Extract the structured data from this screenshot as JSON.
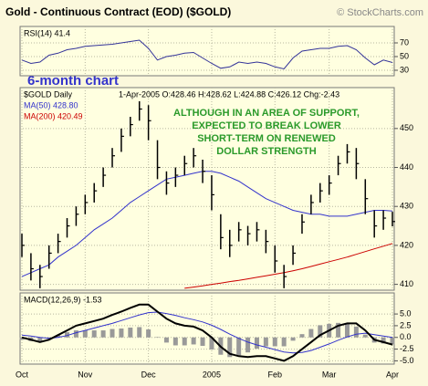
{
  "header": {
    "title": "Gold - Continuous Contract (EOD) ($GOLD)",
    "credit": "© StockCharts.com"
  },
  "annotation": "6-month chart",
  "chart_data": [
    {
      "type": "line",
      "title": "RSI(14) 41.4",
      "color": "#333399",
      "values": [
        45,
        40,
        42,
        52,
        55,
        60,
        62,
        65,
        66,
        67,
        68,
        70,
        72,
        74,
        62,
        45,
        50,
        52,
        55,
        56,
        48,
        40,
        33,
        35,
        42,
        40,
        42,
        40,
        35,
        32,
        48,
        58,
        60,
        62,
        62,
        65,
        66,
        60,
        48,
        38,
        45,
        41.4
      ],
      "ylim": [
        22,
        94
      ],
      "yticks": [
        30,
        50,
        70
      ],
      "grid": true
    },
    {
      "type": "ohlc",
      "title": "$GOLD Daily",
      "subtitle": "1-Apr-2005 O:428.46 H:428.62 L:424.88 C:426.12 Chg:-2.43",
      "annotation": [
        "ALTHOUGH IN AN AREA OF SUPPORT,",
        "EXPECTED TO BREAK LOWER",
        "SHORT-TERM ON RENEWED",
        "DOLLAR STRENGTH"
      ],
      "categories": [
        "Oct",
        null,
        null,
        null,
        null,
        null,
        null,
        "Nov",
        null,
        null,
        null,
        null,
        null,
        null,
        "Dec",
        null,
        null,
        null,
        null,
        null,
        null,
        "2005",
        null,
        null,
        null,
        null,
        null,
        null,
        "Feb",
        null,
        null,
        null,
        null,
        null,
        "Mar",
        null,
        null,
        null,
        null,
        null,
        null,
        "Apr"
      ],
      "high": [
        423,
        418,
        415,
        420,
        423,
        427,
        430,
        433,
        436,
        440,
        445,
        450,
        453,
        457,
        456,
        447,
        439,
        440,
        443,
        445,
        442,
        438,
        428,
        424,
        426,
        425,
        426,
        424,
        420,
        415,
        420,
        428,
        433,
        436,
        438,
        443,
        446,
        445,
        437,
        429,
        429,
        428.62
      ],
      "low": [
        417,
        411,
        409,
        414,
        418,
        422,
        425,
        428,
        431,
        435,
        440,
        444,
        448,
        452,
        447,
        437,
        433,
        435,
        438,
        440,
        436,
        429,
        419,
        417,
        421,
        420,
        421,
        418,
        413,
        409,
        415,
        423,
        428,
        431,
        433,
        438,
        441,
        437,
        428,
        422,
        424,
        424.88
      ],
      "close": [
        420,
        414,
        412,
        418,
        421,
        425,
        428,
        431,
        434,
        438,
        443,
        448,
        451,
        455,
        452,
        440,
        436,
        438,
        441,
        443,
        439,
        433,
        422,
        420,
        424,
        423,
        424,
        421,
        416,
        412,
        418,
        426,
        431,
        434,
        436,
        441,
        444,
        441,
        432,
        425,
        427,
        426.12
      ],
      "color": "#000000",
      "series": [
        {
          "name": "MA(50) 428.80",
          "color": "#3333cc",
          "values": [
            412,
            413,
            414,
            415,
            417,
            418.5,
            420,
            422,
            424,
            425.5,
            427,
            429,
            431,
            432.5,
            434,
            435.5,
            437,
            437.5,
            438,
            438.5,
            439,
            439,
            438.5,
            437.5,
            436.5,
            435,
            433.5,
            432,
            431,
            430,
            429,
            428.5,
            428,
            428,
            427.5,
            427.5,
            427.5,
            428,
            428.5,
            429,
            429,
            428.8
          ]
        },
        {
          "name": "MA(200) 420.49",
          "color": "#cc0000",
          "values": [
            null,
            null,
            null,
            null,
            null,
            null,
            null,
            null,
            null,
            null,
            null,
            null,
            null,
            null,
            null,
            null,
            null,
            null,
            409,
            409.3,
            409.6,
            410,
            410.3,
            410.7,
            411,
            411.4,
            411.8,
            412.2,
            412.6,
            413,
            413.5,
            414,
            414.6,
            415.2,
            415.8,
            416.4,
            417,
            417.7,
            418.4,
            419.1,
            419.8,
            420.49
          ]
        }
      ],
      "ylim": [
        408.5,
        460.5
      ],
      "yticks": [
        410,
        420,
        430,
        440,
        450
      ],
      "grid": true
    },
    {
      "type": "macd",
      "title": "MACD(12,26,9) -1.53",
      "macd": [
        0,
        -0.5,
        -1,
        -0.5,
        0.5,
        1.5,
        2.5,
        3,
        3.5,
        4,
        4.8,
        5.5,
        6.3,
        7,
        7,
        5.5,
        4,
        3,
        2.5,
        2.3,
        1.5,
        0,
        -2,
        -3.5,
        -4,
        -4.2,
        -4,
        -4,
        -4.5,
        -5,
        -4,
        -2.5,
        -1,
        0.5,
        1.5,
        2.5,
        3,
        3,
        1.5,
        -0.5,
        -1,
        -1.53
      ],
      "signal": [
        0.5,
        0.3,
        0,
        -0.2,
        0,
        0.4,
        1,
        1.5,
        2,
        2.5,
        3,
        3.6,
        4.2,
        4.8,
        5.3,
        5.4,
        5.1,
        4.7,
        4.2,
        3.8,
        3.3,
        2.6,
        1.7,
        0.7,
        -0.2,
        -1,
        -1.6,
        -2.1,
        -2.6,
        -3.1,
        -3.3,
        -3.2,
        -2.8,
        -2.1,
        -1.4,
        -0.6,
        0.1,
        0.7,
        0.9,
        0.6,
        0.3,
        0
      ],
      "histogram": [
        -0.5,
        -0.8,
        -1,
        -0.3,
        0.5,
        1.1,
        1.5,
        1.5,
        1.5,
        1.5,
        1.8,
        1.9,
        2.1,
        2.2,
        1.7,
        0.1,
        -1.1,
        -1.7,
        -1.7,
        -1.5,
        -1.8,
        -2.6,
        -3.7,
        -4.2,
        -3.8,
        -3.2,
        -2.4,
        -1.9,
        -1.9,
        -1.9,
        -0.7,
        0.7,
        1.8,
        2.6,
        2.9,
        3.1,
        2.9,
        2.3,
        0.6,
        -1.1,
        -1.3,
        -1.53
      ],
      "macd_color": "#000000",
      "signal_color": "#3333cc",
      "histogram_color": "#999999",
      "ylim": [
        -5.7,
        9.5
      ],
      "yticks": [
        {
          "value": 5,
          "label": "5.0"
        },
        {
          "value": 2.5,
          "label": "2.5"
        },
        {
          "value": 0,
          "label": "0.0"
        },
        {
          "value": -2.5,
          "label": "-2.5"
        },
        {
          "value": -5,
          "label": "-5.0"
        }
      ],
      "grid": true
    }
  ]
}
